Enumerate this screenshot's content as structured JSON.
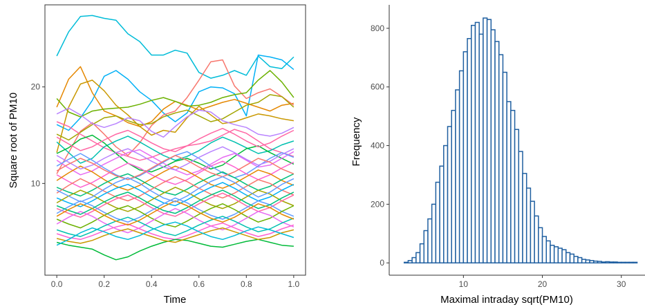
{
  "chart_data": [
    {
      "type": "line",
      "title": "",
      "xlabel": "Time",
      "ylabel": "Square root of PM10",
      "xlim": [
        -0.05,
        1.05
      ],
      "ylim": [
        0.5,
        28.5
      ],
      "x_ticks": [
        "0.0",
        "0.2",
        "0.4",
        "0.6",
        "0.8",
        "1.0"
      ],
      "y_ticks": [
        "10",
        "20"
      ],
      "grid": false,
      "legend": "none",
      "palette": [
        "#F8766D",
        "#E58700",
        "#C99800",
        "#A3A500",
        "#6BB100",
        "#00BA38",
        "#00BF7D",
        "#00C0AF",
        "#00BCD8",
        "#00B0F6",
        "#619CFF",
        "#B983FF",
        "#E76BF3",
        "#FD61D1",
        "#FF67A4"
      ],
      "x": [
        0.0,
        0.05,
        0.1,
        0.15,
        0.2,
        0.25,
        0.3,
        0.35,
        0.4,
        0.45,
        0.5,
        0.55,
        0.6,
        0.65,
        0.7,
        0.75,
        0.8,
        0.85,
        0.9,
        0.95,
        1.0
      ],
      "series": [
        {
          "color": "#00BCD8",
          "values": [
            23.2,
            25.7,
            27.3,
            27.4,
            27.1,
            26.9,
            25.5,
            24.7,
            23.3,
            23.3,
            23.8,
            23.5,
            21.5,
            20.9,
            21.2,
            21.7,
            21.2,
            23.2,
            22.1,
            21.9,
            23.1
          ]
        },
        {
          "color": "#00B0F6",
          "values": [
            16.1,
            15.5,
            16.8,
            18.6,
            21.1,
            21.7,
            20.8,
            19.5,
            18.6,
            17.3,
            16.4,
            17.3,
            19.5,
            20.0,
            19.9,
            19.3,
            17.0,
            23.3,
            23.1,
            22.8,
            21.8
          ]
        },
        {
          "color": "#E58700",
          "values": [
            17.9,
            20.8,
            22.1,
            19.4,
            17.5,
            17.0,
            16.3,
            15.9,
            16.4,
            17.7,
            18.5,
            18.1,
            17.6,
            18.0,
            18.4,
            18.7,
            18.3,
            17.9,
            17.5,
            18.1,
            18.3
          ]
        },
        {
          "color": "#F8766D",
          "values": [
            11.0,
            13.2,
            15.4,
            16.3,
            15.1,
            13.8,
            12.9,
            14.2,
            16.0,
            17.1,
            17.5,
            18.9,
            20.7,
            22.6,
            22.8,
            20.1,
            18.8,
            19.4,
            19.8,
            19.0,
            18.1
          ]
        },
        {
          "color": "#6BB100",
          "values": [
            18.8,
            17.4,
            16.9,
            17.5,
            17.7,
            17.8,
            17.9,
            18.2,
            18.6,
            18.9,
            18.5,
            18.0,
            18.1,
            18.4,
            18.9,
            19.2,
            19.4,
            20.7,
            21.7,
            20.5,
            18.9
          ]
        },
        {
          "color": "#C99800",
          "values": [
            13.2,
            17.9,
            20.3,
            20.7,
            19.6,
            18.1,
            17.1,
            15.9,
            15.0,
            15.5,
            15.3,
            16.8,
            18.0,
            17.1,
            16.2,
            16.4,
            16.8,
            17.2,
            17.0,
            16.7,
            16.5
          ]
        },
        {
          "color": "#A3A500",
          "values": [
            15.1,
            14.5,
            15.3,
            16.1,
            16.8,
            17.0,
            16.5,
            16.1,
            16.2,
            16.9,
            17.3,
            17.6,
            17.0,
            16.4,
            16.7,
            17.4,
            18.1,
            18.4,
            19.2,
            19.0,
            17.9
          ]
        },
        {
          "color": "#B983FF",
          "values": [
            17.2,
            17.8,
            17.1,
            16.2,
            15.8,
            16.2,
            16.8,
            16.5,
            15.4,
            14.8,
            15.9,
            16.9,
            17.6,
            17.4,
            16.5,
            16.1,
            15.8,
            15.1,
            14.9,
            15.2,
            15.8
          ]
        },
        {
          "color": "#FF67A4",
          "values": [
            16.4,
            15.9,
            15.1,
            14.4,
            13.7,
            13.2,
            12.8,
            12.4,
            12.7,
            13.2,
            13.6,
            13.9,
            14.1,
            14.4,
            15.0,
            15.6,
            15.2,
            14.4,
            13.6,
            13.2,
            12.8
          ]
        },
        {
          "color": "#00C0AF",
          "values": [
            14.3,
            13.2,
            12.1,
            12.6,
            13.8,
            14.4,
            14.9,
            14.3,
            13.6,
            12.9,
            12.4,
            12.8,
            13.4,
            14.2,
            14.8,
            14.3,
            13.7,
            13.1,
            13.4,
            14.0,
            14.4
          ]
        },
        {
          "color": "#00BA38",
          "values": [
            13.1,
            13.7,
            14.6,
            15.0,
            14.2,
            13.1,
            12.1,
            11.4,
            11.2,
            11.7,
            12.3,
            12.6,
            12.1,
            11.5,
            11.9,
            12.8,
            13.6,
            13.9,
            13.2,
            12.6,
            12.0
          ]
        },
        {
          "color": "#E76BF3",
          "values": [
            12.4,
            11.6,
            10.9,
            11.3,
            12.0,
            12.6,
            13.2,
            13.5,
            12.8,
            12.1,
            11.4,
            10.9,
            11.3,
            12.0,
            12.7,
            13.1,
            12.4,
            11.7,
            11.9,
            12.6,
            13.3
          ]
        },
        {
          "color": "#619CFF",
          "values": [
            11.8,
            12.5,
            13.1,
            12.4,
            11.6,
            10.9,
            10.4,
            10.8,
            11.5,
            12.2,
            12.9,
            13.3,
            12.6,
            11.8,
            11.1,
            10.6,
            11.0,
            11.8,
            12.6,
            13.2,
            12.7
          ]
        },
        {
          "color": "#FD61D1",
          "values": [
            10.9,
            10.2,
            9.6,
            10.1,
            10.8,
            11.5,
            12.1,
            11.6,
            10.9,
            10.3,
            9.9,
            10.4,
            11.1,
            11.8,
            12.3,
            11.7,
            11.0,
            10.4,
            10.9,
            11.6,
            12.2
          ]
        },
        {
          "color": "#E58700",
          "values": [
            10.3,
            11.1,
            11.8,
            11.2,
            10.4,
            9.7,
            9.3,
            9.8,
            10.5,
            11.2,
            11.8,
            11.3,
            10.6,
            9.9,
            9.5,
            10.0,
            10.7,
            11.4,
            11.0,
            10.3,
            9.8
          ]
        },
        {
          "color": "#00BF7D",
          "values": [
            9.6,
            9.1,
            8.7,
            9.3,
            10.0,
            10.6,
            11.0,
            10.4,
            9.7,
            9.1,
            8.8,
            9.4,
            10.1,
            10.7,
            11.2,
            10.6,
            9.9,
            9.3,
            9.7,
            10.4,
            11.0
          ]
        },
        {
          "color": "#F8766D",
          "values": [
            9.0,
            9.8,
            10.5,
            9.9,
            9.2,
            8.6,
            8.2,
            8.7,
            9.4,
            10.1,
            10.7,
            10.2,
            9.5,
            8.9,
            8.5,
            9.0,
            9.7,
            10.4,
            10.0,
            9.3,
            8.8
          ]
        },
        {
          "color": "#00B0F6",
          "values": [
            8.5,
            8.0,
            7.6,
            8.2,
            8.9,
            9.5,
            9.9,
            9.3,
            8.6,
            8.0,
            7.7,
            8.3,
            9.0,
            9.6,
            10.1,
            9.5,
            8.8,
            8.2,
            8.6,
            9.3,
            9.9
          ]
        },
        {
          "color": "#A3A500",
          "values": [
            8.0,
            8.7,
            9.3,
            8.8,
            8.1,
            7.5,
            7.1,
            7.6,
            8.3,
            9.0,
            9.6,
            9.1,
            8.4,
            7.8,
            7.4,
            7.9,
            8.6,
            9.3,
            8.9,
            8.2,
            7.7
          ]
        },
        {
          "color": "#FF67A4",
          "values": [
            7.4,
            6.9,
            6.5,
            7.1,
            7.8,
            8.4,
            8.8,
            8.2,
            7.5,
            6.9,
            6.6,
            7.2,
            7.9,
            8.5,
            9.0,
            8.4,
            7.7,
            7.1,
            7.5,
            8.2,
            8.8
          ]
        },
        {
          "color": "#619CFF",
          "values": [
            6.9,
            7.6,
            8.2,
            7.7,
            7.0,
            6.4,
            6.0,
            6.5,
            7.2,
            7.9,
            8.5,
            8.0,
            7.3,
            6.7,
            6.3,
            6.8,
            7.5,
            8.2,
            7.8,
            7.1,
            6.6
          ]
        },
        {
          "color": "#6BB100",
          "values": [
            6.3,
            5.8,
            5.4,
            6.0,
            6.7,
            7.3,
            7.7,
            7.1,
            6.4,
            5.8,
            5.5,
            6.1,
            6.8,
            7.4,
            7.9,
            7.3,
            6.6,
            6.0,
            6.4,
            7.1,
            7.7
          ]
        },
        {
          "color": "#E76BF3",
          "values": [
            5.8,
            6.5,
            7.1,
            6.6,
            5.9,
            5.3,
            4.9,
            5.4,
            6.1,
            6.8,
            7.4,
            6.9,
            6.2,
            5.6,
            5.2,
            5.7,
            6.4,
            7.1,
            6.7,
            6.0,
            5.5
          ]
        },
        {
          "color": "#00C0AF",
          "values": [
            5.2,
            4.8,
            4.5,
            5.0,
            5.6,
            6.1,
            6.5,
            6.0,
            5.4,
            4.9,
            4.6,
            5.1,
            5.7,
            6.2,
            6.6,
            6.1,
            5.5,
            5.0,
            5.3,
            5.9,
            6.4
          ]
        },
        {
          "color": "#FD61D1",
          "values": [
            4.8,
            4.4,
            4.2,
            4.6,
            5.1,
            5.5,
            5.8,
            5.3,
            4.8,
            4.4,
            4.2,
            4.6,
            5.1,
            5.6,
            5.9,
            5.4,
            4.9,
            4.5,
            4.8,
            5.3,
            5.7
          ]
        },
        {
          "color": "#00BA38",
          "values": [
            3.9,
            3.6,
            3.4,
            3.2,
            2.6,
            2.1,
            2.4,
            3.0,
            3.5,
            3.9,
            4.2,
            4.1,
            3.8,
            3.5,
            3.4,
            3.7,
            4.0,
            4.2,
            3.9,
            3.6,
            3.5
          ]
        },
        {
          "color": "#C99800",
          "values": [
            4.3,
            4.0,
            3.8,
            4.1,
            4.6,
            5.0,
            5.3,
            4.9,
            4.5,
            4.1,
            3.9,
            4.3,
            4.7,
            5.1,
            5.4,
            5.0,
            4.6,
            4.2,
            4.4,
            4.9,
            5.2
          ]
        },
        {
          "color": "#00BCD8",
          "values": [
            3.6,
            4.2,
            4.9,
            5.4,
            5.0,
            4.5,
            4.2,
            4.6,
            5.2,
            5.7,
            6.0,
            5.6,
            5.0,
            4.5,
            4.2,
            4.6,
            5.1,
            5.5,
            5.2,
            4.8,
            4.4
          ]
        },
        {
          "color": "#B983FF",
          "values": [
            12.9,
            12.2,
            11.5,
            11.9,
            12.6,
            13.2,
            13.6,
            13.0,
            12.3,
            11.7,
            11.4,
            12.0,
            12.7,
            13.3,
            13.8,
            13.2,
            12.5,
            11.9,
            12.3,
            13.0,
            13.6
          ]
        },
        {
          "color": "#F8766D",
          "values": [
            11.3,
            12.0,
            12.6,
            12.1,
            11.4,
            10.8,
            10.4,
            10.9,
            11.6,
            12.3,
            12.9,
            12.4,
            11.7,
            11.1,
            10.7,
            11.2,
            11.9,
            12.6,
            12.2,
            11.5,
            11.0
          ]
        },
        {
          "color": "#00BF7D",
          "values": [
            7.7,
            7.2,
            6.8,
            7.4,
            8.1,
            8.7,
            9.1,
            8.5,
            7.8,
            7.2,
            6.9,
            7.5,
            8.2,
            8.8,
            9.3,
            8.7,
            8.0,
            7.4,
            7.8,
            8.5,
            9.1
          ]
        },
        {
          "color": "#E58700",
          "values": [
            6.6,
            7.3,
            7.9,
            7.4,
            6.7,
            6.1,
            5.7,
            6.2,
            6.9,
            7.6,
            8.2,
            7.7,
            7.0,
            6.4,
            6.0,
            6.5,
            7.2,
            7.9,
            7.5,
            6.8,
            6.3
          ]
        },
        {
          "color": "#FF67A4",
          "values": [
            14.8,
            14.1,
            13.4,
            13.8,
            14.5,
            15.1,
            15.5,
            14.9,
            14.2,
            13.6,
            13.3,
            13.9,
            14.6,
            15.2,
            15.7,
            15.1,
            14.4,
            13.8,
            14.2,
            14.9,
            15.5
          ]
        },
        {
          "color": "#619CFF",
          "values": [
            9.3,
            8.7,
            8.1,
            8.6,
            9.4,
            10.1,
            10.6,
            10.0,
            9.2,
            8.5,
            8.1,
            8.7,
            9.5,
            10.2,
            10.7,
            10.1,
            9.3,
            8.6,
            9.1,
            9.9,
            10.5
          ]
        }
      ]
    },
    {
      "type": "bar",
      "title": "",
      "xlabel": "Maximal intraday sqrt(PM10)",
      "ylabel": "Frequency",
      "xlim": [
        0.6,
        33.0
      ],
      "ylim": [
        -42,
        880
      ],
      "x_ticks": [
        10,
        20,
        30
      ],
      "y_ticks": [
        0,
        200,
        400,
        600,
        800
      ],
      "grid": false,
      "legend": "none",
      "bar_fill": "#ffffff",
      "bar_stroke": "#1f5fa0",
      "bin_width": 0.5,
      "bin_starts": [
        2.0,
        2.5,
        3.0,
        3.5,
        4.0,
        4.5,
        5.0,
        5.5,
        6.0,
        6.5,
        7.0,
        7.5,
        8.0,
        8.5,
        9.0,
        9.5,
        10.0,
        10.5,
        11.0,
        11.5,
        12.0,
        12.5,
        13.0,
        13.5,
        14.0,
        14.5,
        15.0,
        15.5,
        16.0,
        16.5,
        17.0,
        17.5,
        18.0,
        18.5,
        19.0,
        19.5,
        20.0,
        20.5,
        21.0,
        21.5,
        22.0,
        22.5,
        23.0,
        23.5,
        24.0,
        24.5,
        25.0,
        25.5,
        26.0,
        26.5,
        27.0,
        27.5,
        28.0,
        28.5,
        29.0,
        29.5,
        30.0,
        30.5,
        31.0,
        31.5
      ],
      "values": [
        0,
        2,
        8,
        18,
        35,
        65,
        110,
        150,
        200,
        275,
        330,
        400,
        465,
        520,
        590,
        655,
        720,
        765,
        810,
        820,
        780,
        835,
        830,
        795,
        755,
        710,
        650,
        550,
        520,
        455,
        380,
        305,
        255,
        210,
        160,
        120,
        90,
        75,
        60,
        55,
        50,
        45,
        35,
        30,
        22,
        18,
        12,
        10,
        8,
        6,
        5,
        3,
        4,
        3,
        3,
        2,
        2,
        2,
        2,
        2
      ]
    }
  ]
}
